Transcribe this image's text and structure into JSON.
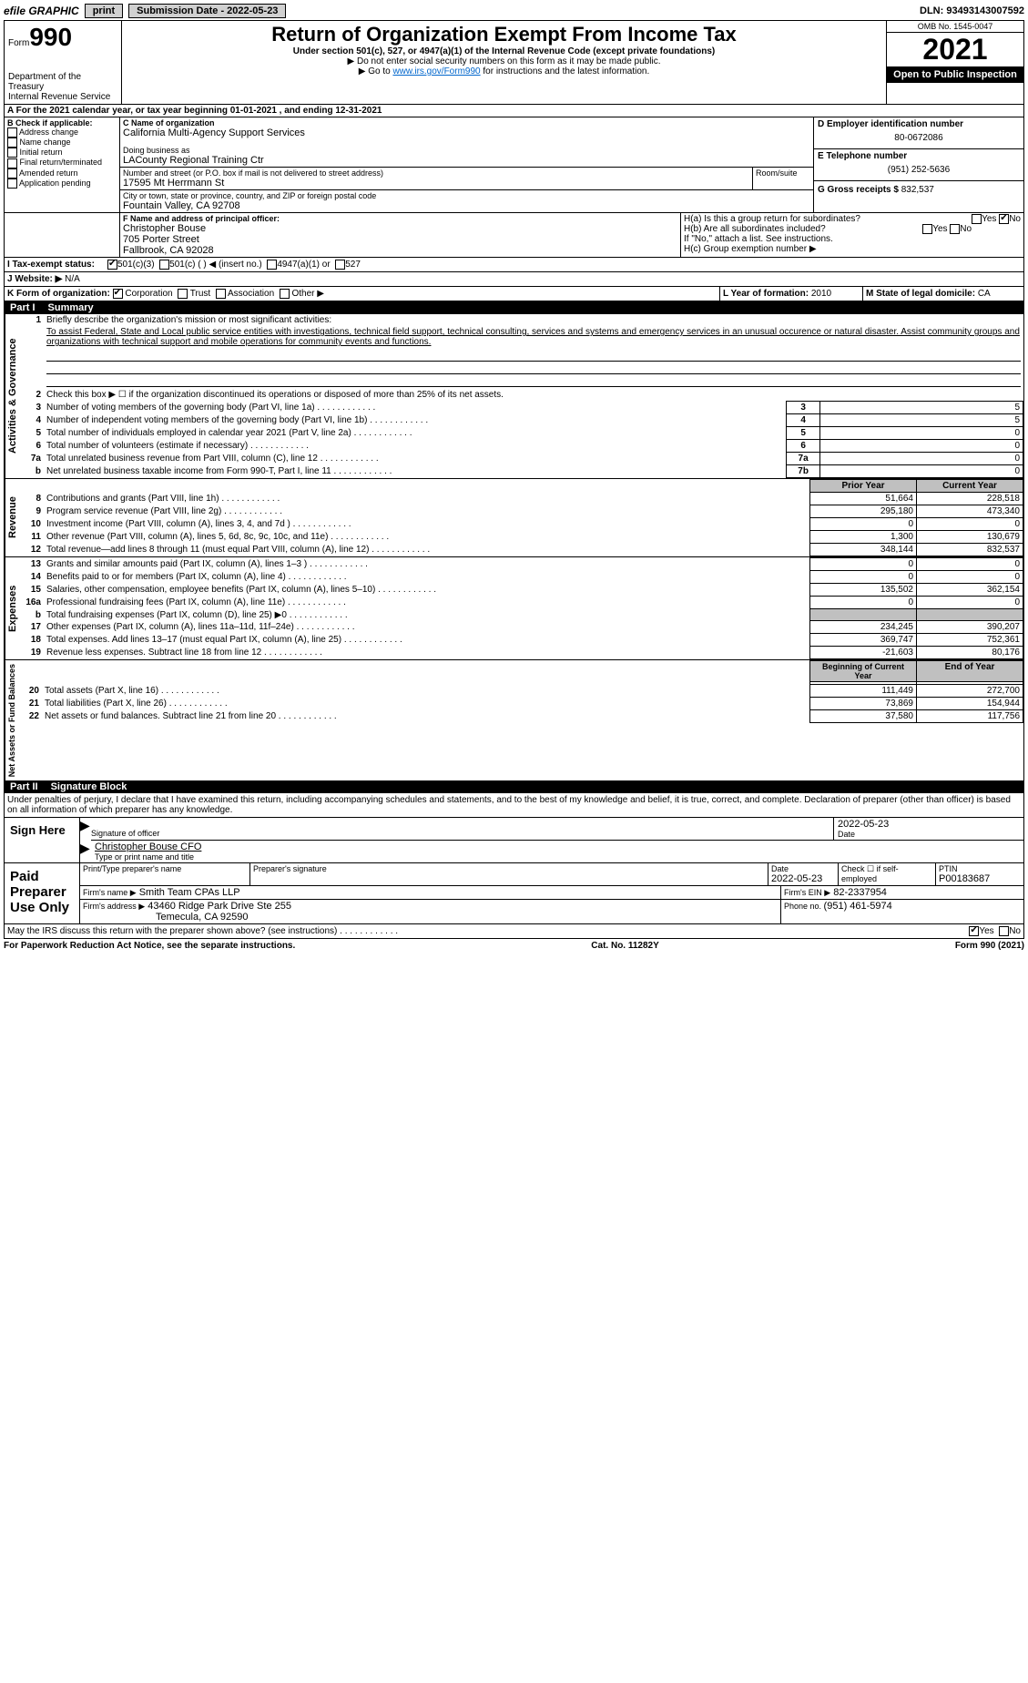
{
  "topbar": {
    "efile": "efile GRAPHIC",
    "print": "print",
    "subdate_label": "Submission Date - 2022-05-23",
    "dln": "DLN: 93493143007592"
  },
  "header": {
    "form_prefix": "Form",
    "form_num": "990",
    "dept": "Department of the Treasury",
    "irs": "Internal Revenue Service",
    "title": "Return of Organization Exempt From Income Tax",
    "subtitle": "Under section 501(c), 527, or 4947(a)(1) of the Internal Revenue Code (except private foundations)",
    "warn": "▶ Do not enter social security numbers on this form as it may be made public.",
    "goto_pre": "▶ Go to ",
    "goto_link": "www.irs.gov/Form990",
    "goto_post": " for instructions and the latest information.",
    "omb": "OMB No. 1545-0047",
    "year": "2021",
    "openpub": "Open to Public Inspection"
  },
  "a": {
    "label": "A For the 2021 calendar year, or tax year beginning ",
    "begin": "01-01-2021",
    "mid": " , and ending ",
    "end": "12-31-2021"
  },
  "b": {
    "label": "B Check if applicable:",
    "opts": [
      "Address change",
      "Name change",
      "Initial return",
      "Final return/terminated",
      "Amended return",
      "Application pending"
    ]
  },
  "c": {
    "name_lbl": "C Name of organization",
    "name": "California Multi-Agency Support Services",
    "dba_lbl": "Doing business as",
    "dba": "LACounty Regional Training Ctr",
    "addr_lbl": "Number and street (or P.O. box if mail is not delivered to street address)",
    "room_lbl": "Room/suite",
    "addr": "17595 Mt Herrmann St",
    "city_lbl": "City or town, state or province, country, and ZIP or foreign postal code",
    "city": "Fountain Valley, CA  92708"
  },
  "d": {
    "lbl": "D Employer identification number",
    "val": "80-0672086"
  },
  "e": {
    "lbl": "E Telephone number",
    "val": "(951) 252-5636"
  },
  "g": {
    "lbl": "G Gross receipts $ ",
    "val": "832,537"
  },
  "f": {
    "lbl": "F Name and address of principal officer:",
    "name": "Christopher Bouse",
    "addr1": "705 Porter Street",
    "addr2": "Fallbrook, CA  92028"
  },
  "h": {
    "a": "H(a)  Is this a group return for subordinates?",
    "b": "H(b)  Are all subordinates included?",
    "note": "If \"No,\" attach a list. See instructions.",
    "c": "H(c)  Group exemption number ▶",
    "yes": "Yes",
    "no": "No"
  },
  "i": {
    "lbl": "I Tax-exempt status:",
    "o1": "501(c)(3)",
    "o2": "501(c) (  ) ◀ (insert no.)",
    "o3": "4947(a)(1) or",
    "o4": "527"
  },
  "j": {
    "lbl": "J Website: ▶",
    "val": "N/A"
  },
  "k": {
    "lbl": "K Form of organization:",
    "o1": "Corporation",
    "o2": "Trust",
    "o3": "Association",
    "o4": "Other ▶"
  },
  "l": {
    "lbl": "L Year of formation: ",
    "val": "2010"
  },
  "m": {
    "lbl": "M State of legal domicile: ",
    "val": "CA"
  },
  "part1": {
    "num": "Part I",
    "title": "Summary"
  },
  "summary": {
    "q1": "Briefly describe the organization's mission or most significant activities:",
    "mission": "To assist Federal, State and Local public service entities with investigations, technical field support, technical consulting, services and systems and emergency services in an unusual occurence or natural disaster. Assist community groups and organizations with technical support and mobile operations for community events and functions.",
    "q2": "Check this box ▶ ☐ if the organization discontinued its operations or disposed of more than 25% of its net assets.",
    "q3": "Number of voting members of the governing body (Part VI, line 1a)",
    "q4": "Number of independent voting members of the governing body (Part VI, line 1b)",
    "q5": "Total number of individuals employed in calendar year 2021 (Part V, line 2a)",
    "q6": "Total number of volunteers (estimate if necessary)",
    "q7a": "Total unrelated business revenue from Part VIII, column (C), line 12",
    "q7b": "Net unrelated business taxable income from Form 990-T, Part I, line 11",
    "v3": "5",
    "v4": "5",
    "v5": "0",
    "v6": "0",
    "v7a": "0",
    "v7b": "0",
    "prior": "Prior Year",
    "current": "Current Year",
    "rows": [
      {
        "n": "8",
        "d": "Contributions and grants (Part VIII, line 1h)",
        "p": "51,664",
        "c": "228,518"
      },
      {
        "n": "9",
        "d": "Program service revenue (Part VIII, line 2g)",
        "p": "295,180",
        "c": "473,340"
      },
      {
        "n": "10",
        "d": "Investment income (Part VIII, column (A), lines 3, 4, and 7d )",
        "p": "0",
        "c": "0"
      },
      {
        "n": "11",
        "d": "Other revenue (Part VIII, column (A), lines 5, 6d, 8c, 9c, 10c, and 11e)",
        "p": "1,300",
        "c": "130,679"
      },
      {
        "n": "12",
        "d": "Total revenue—add lines 8 through 11 (must equal Part VIII, column (A), line 12)",
        "p": "348,144",
        "c": "832,537"
      },
      {
        "n": "13",
        "d": "Grants and similar amounts paid (Part IX, column (A), lines 1–3 )",
        "p": "0",
        "c": "0"
      },
      {
        "n": "14",
        "d": "Benefits paid to or for members (Part IX, column (A), line 4)",
        "p": "0",
        "c": "0"
      },
      {
        "n": "15",
        "d": "Salaries, other compensation, employee benefits (Part IX, column (A), lines 5–10)",
        "p": "135,502",
        "c": "362,154"
      },
      {
        "n": "16a",
        "d": "Professional fundraising fees (Part IX, column (A), line 11e)",
        "p": "0",
        "c": "0"
      },
      {
        "n": "b",
        "d": "Total fundraising expenses (Part IX, column (D), line 25) ▶0",
        "p": "",
        "c": ""
      },
      {
        "n": "17",
        "d": "Other expenses (Part IX, column (A), lines 11a–11d, 11f–24e)",
        "p": "234,245",
        "c": "390,207"
      },
      {
        "n": "18",
        "d": "Total expenses. Add lines 13–17 (must equal Part IX, column (A), line 25)",
        "p": "369,747",
        "c": "752,361"
      },
      {
        "n": "19",
        "d": "Revenue less expenses. Subtract line 18 from line 12",
        "p": "-21,603",
        "c": "80,176"
      }
    ],
    "begin": "Beginning of Current Year",
    "end": "End of Year",
    "netrows": [
      {
        "n": "20",
        "d": "Total assets (Part X, line 16)",
        "p": "111,449",
        "c": "272,700"
      },
      {
        "n": "21",
        "d": "Total liabilities (Part X, line 26)",
        "p": "73,869",
        "c": "154,944"
      },
      {
        "n": "22",
        "d": "Net assets or fund balances. Subtract line 21 from line 20",
        "p": "37,580",
        "c": "117,756"
      }
    ]
  },
  "tabs": {
    "gov": "Activities & Governance",
    "rev": "Revenue",
    "exp": "Expenses",
    "net": "Net Assets or Fund Balances"
  },
  "part2": {
    "num": "Part II",
    "title": "Signature Block"
  },
  "sig": {
    "decl": "Under penalties of perjury, I declare that I have examined this return, including accompanying schedules and statements, and to the best of my knowledge and belief, it is true, correct, and complete. Declaration of preparer (other than officer) is based on all information of which preparer has any knowledge.",
    "sign_here": "Sign Here",
    "sig_officer": "Signature of officer",
    "date": "Date",
    "date_val": "2022-05-23",
    "name_title": "Christopher Bouse CFO",
    "type_name": "Type or print name and title",
    "paid": "Paid Preparer Use Only",
    "prep_name_lbl": "Print/Type preparer's name",
    "prep_sig_lbl": "Preparer's signature",
    "prep_date": "2022-05-23",
    "check_self": "Check ☐ if self-employed",
    "ptin_lbl": "PTIN",
    "ptin": "P00183687",
    "firm_name_lbl": "Firm's name  ▶",
    "firm_name": "Smith Team CPAs LLP",
    "firm_ein_lbl": "Firm's EIN ▶",
    "firm_ein": "82-2337954",
    "firm_addr_lbl": "Firm's address ▶",
    "firm_addr": "43460 Ridge Park Drive Ste 255",
    "firm_city": "Temecula, CA  92590",
    "phone_lbl": "Phone no. ",
    "phone": "(951) 461-5974",
    "discuss": "May the IRS discuss this return with the preparer shown above? (see instructions)",
    "yes": "Yes",
    "no": "No"
  },
  "footer": {
    "pra": "For Paperwork Reduction Act Notice, see the separate instructions.",
    "cat": "Cat. No. 11282Y",
    "form": "Form 990 (2021)"
  }
}
